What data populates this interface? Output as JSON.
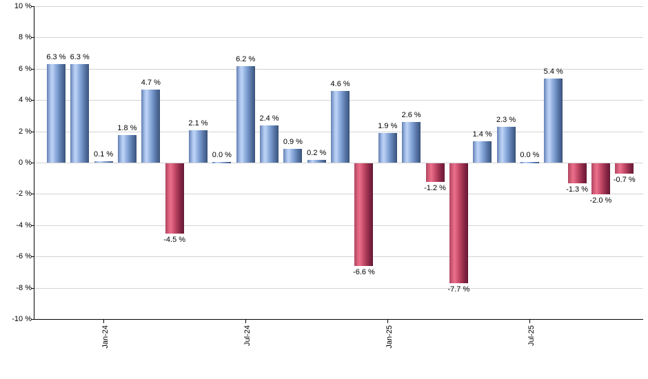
{
  "chart_data": {
    "type": "bar",
    "title": "",
    "unit": "%",
    "values": [
      6.3,
      6.3,
      0.1,
      1.8,
      4.7,
      -4.5,
      2.1,
      0.0,
      6.2,
      2.4,
      0.9,
      0.2,
      4.6,
      -6.6,
      1.9,
      2.6,
      -1.2,
      -7.7,
      1.4,
      2.3,
      0.0,
      5.4,
      -1.3,
      -2.0,
      -0.7
    ],
    "value_labels": [
      "6.3 %",
      "6.3 %",
      "0.1 %",
      "1.8 %",
      "4.7 %",
      "-4.5 %",
      "2.1 %",
      "0.0 %",
      "6.2 %",
      "2.4 %",
      "0.9 %",
      "0.2 %",
      "4.6 %",
      "-6.6 %",
      "1.9 %",
      "2.6 %",
      "-1.2 %",
      "-7.7 %",
      "1.4 %",
      "2.3 %",
      "0.0 %",
      "5.4 %",
      "-1.3 %",
      "-2.0 %",
      "-0.7 %"
    ],
    "x_axis": {
      "ticks": [
        {
          "bar_index": 2,
          "label": "Jan-24"
        },
        {
          "bar_index": 8,
          "label": "Jul-24"
        },
        {
          "bar_index": 14,
          "label": "Jan-25"
        },
        {
          "bar_index": 20,
          "label": "Jul-25"
        }
      ]
    },
    "y_axis": {
      "min": -10,
      "max": 10,
      "step": 2,
      "tick_labels": [
        "10 %",
        "8 %",
        "6 %",
        "4 %",
        "2 %",
        "0 %",
        "-2 %",
        "-4 %",
        "-6 %",
        "-8 %",
        "-10 %"
      ]
    },
    "grid": true,
    "legend": null,
    "colors": {
      "positive_bar_mid": "#7495c9",
      "positive_bar_light": "#bfd4f6",
      "positive_bar_dark": "#3e5a88",
      "negative_bar_mid": "#c94e6c",
      "negative_bar_light": "#e96f8b",
      "negative_bar_dark": "#6f1d38",
      "gridline": "#d3d3d3",
      "axis": "#000000",
      "label_text": "#000000",
      "background": "#ffffff"
    }
  }
}
